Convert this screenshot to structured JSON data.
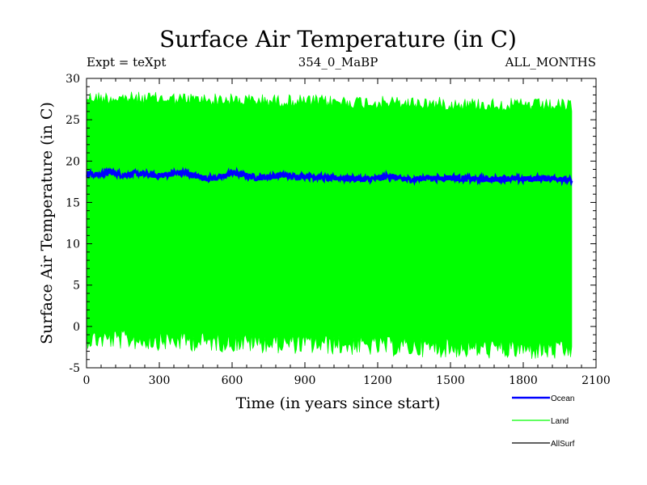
{
  "chart_data": {
    "type": "line",
    "title": "Surface Air Temperature (in C)",
    "subtitle_left": "Expt = teXpt",
    "subtitle_center": "354_0_MaBP",
    "subtitle_right": "ALL_MONTHS",
    "xlabel": "Time (in years since start)",
    "ylabel": "Surface Air Temperature (in C)",
    "xlim": [
      0,
      2100
    ],
    "ylim": [
      -5,
      30
    ],
    "xticks": [
      0,
      300,
      600,
      900,
      1200,
      1500,
      1800,
      2100
    ],
    "yticks": [
      -5,
      0,
      5,
      10,
      15,
      20,
      25,
      30
    ],
    "grid": false,
    "legend_position": "bottom-right",
    "series": [
      {
        "name": "Ocean",
        "color": "#0000ff",
        "x": [
          0,
          50,
          100,
          150,
          200,
          250,
          300,
          350,
          400,
          450,
          500,
          550,
          600,
          650,
          700,
          750,
          800,
          850,
          900,
          950,
          1000,
          1050,
          1100,
          1150,
          1200,
          1250,
          1300,
          1350,
          1400,
          1450,
          1500,
          1550,
          1600,
          1650,
          1700,
          1750,
          1800,
          1850,
          1900,
          1950,
          2000
        ],
        "y": [
          18.5,
          18.3,
          18.7,
          18.3,
          18.5,
          18.4,
          18.2,
          18.5,
          18.6,
          18.2,
          17.9,
          18.0,
          18.6,
          18.3,
          18.0,
          18.1,
          18.3,
          18.1,
          18.2,
          18.1,
          17.9,
          18.0,
          17.9,
          17.8,
          17.9,
          18.2,
          17.8,
          17.8,
          18.0,
          17.9,
          18.0,
          17.9,
          17.8,
          17.8,
          17.8,
          17.9,
          17.8,
          17.9,
          17.9,
          17.9,
          17.6
        ]
      },
      {
        "name": "Land",
        "color": "#00ff00",
        "x": [
          0,
          2000
        ],
        "max": [
          28.5,
          27.5
        ],
        "min": [
          -1.5,
          -3.0
        ]
      },
      {
        "name": "AllSurf",
        "color": "#000000",
        "x": [],
        "y": []
      }
    ]
  }
}
